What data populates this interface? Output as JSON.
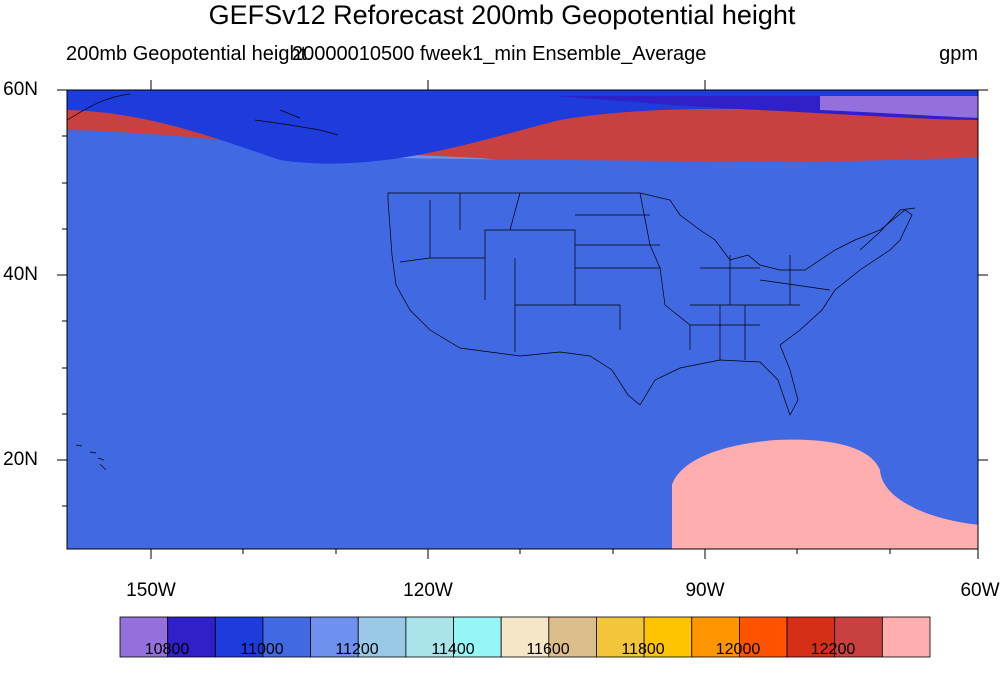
{
  "title": "GEFSv12 Reforecast 200mb Geopotential height",
  "subtitle_left": "200mb Geopotential height",
  "subtitle_center": "20000010500 fweek1_min Ensemble_Average",
  "subtitle_right": "gpm",
  "lat_labels": [
    "60N",
    "40N",
    "20N"
  ],
  "lon_labels": [
    "150W",
    "120W",
    "90W",
    "60W"
  ],
  "colorbar": {
    "colors": [
      "#9370db",
      "#3020c8",
      "#1e3cdc",
      "#4169e1",
      "#6e91f0",
      "#9ac9e8",
      "#aae3ea",
      "#96f5f5",
      "#f5e6c8",
      "#dcbe8c",
      "#f2c53a",
      "#ffc400",
      "#ff9500",
      "#ff5300",
      "#d52f18",
      "#c94040",
      "#ffaeb0"
    ],
    "tick_labels": [
      "10800",
      "11000",
      "11200",
      "11400",
      "11600",
      "11800",
      "12000",
      "12200"
    ]
  },
  "map": {
    "extent": {
      "lon": [
        -159,
        -60
      ],
      "lat": [
        10,
        60
      ]
    },
    "units": "gpm"
  }
}
